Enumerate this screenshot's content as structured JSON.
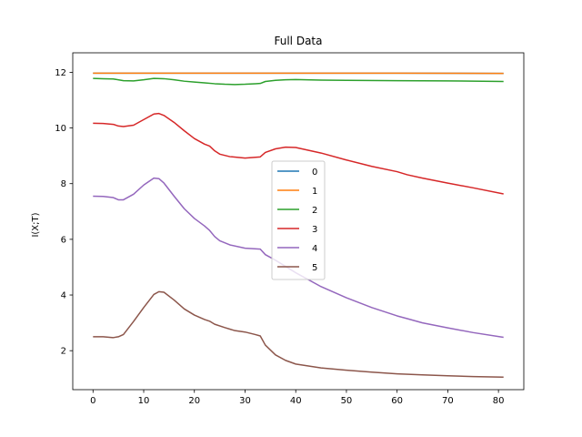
{
  "chart_data": {
    "type": "line",
    "title": "Full Data",
    "xlabel": "",
    "ylabel": "I(X;T)",
    "xlim": [
      -4,
      85
    ],
    "ylim": [
      0.6,
      12.7
    ],
    "xticks": [
      0,
      10,
      20,
      30,
      40,
      50,
      60,
      70,
      80
    ],
    "yticks": [
      2,
      4,
      6,
      8,
      10,
      12
    ],
    "grid": false,
    "legend_position": "center",
    "series": [
      {
        "name": "0",
        "color": "#1f77b4",
        "points": [
          [
            0,
            11.97
          ],
          [
            20,
            11.97
          ],
          [
            40,
            11.97
          ],
          [
            60,
            11.97
          ],
          [
            81,
            11.96
          ]
        ]
      },
      {
        "name": "1",
        "color": "#ff7f0e",
        "points": [
          [
            0,
            11.97
          ],
          [
            20,
            11.97
          ],
          [
            40,
            11.97
          ],
          [
            60,
            11.97
          ],
          [
            81,
            11.96
          ]
        ]
      },
      {
        "name": "2",
        "color": "#2ca02c",
        "points": [
          [
            0,
            11.78
          ],
          [
            2,
            11.77
          ],
          [
            4,
            11.76
          ],
          [
            6,
            11.7
          ],
          [
            8,
            11.69
          ],
          [
            10,
            11.73
          ],
          [
            12,
            11.78
          ],
          [
            14,
            11.77
          ],
          [
            16,
            11.73
          ],
          [
            18,
            11.68
          ],
          [
            20,
            11.65
          ],
          [
            22,
            11.62
          ],
          [
            24,
            11.59
          ],
          [
            26,
            11.57
          ],
          [
            28,
            11.56
          ],
          [
            30,
            11.57
          ],
          [
            32,
            11.59
          ],
          [
            33,
            11.6
          ],
          [
            34,
            11.67
          ],
          [
            36,
            11.71
          ],
          [
            38,
            11.73
          ],
          [
            40,
            11.74
          ],
          [
            45,
            11.72
          ],
          [
            50,
            11.71
          ],
          [
            60,
            11.7
          ],
          [
            70,
            11.69
          ],
          [
            81,
            11.67
          ]
        ]
      },
      {
        "name": "3",
        "color": "#d62728",
        "points": [
          [
            0,
            10.17
          ],
          [
            2,
            10.16
          ],
          [
            4,
            10.13
          ],
          [
            5,
            10.07
          ],
          [
            6,
            10.05
          ],
          [
            8,
            10.1
          ],
          [
            10,
            10.3
          ],
          [
            12,
            10.5
          ],
          [
            13,
            10.52
          ],
          [
            14,
            10.45
          ],
          [
            16,
            10.2
          ],
          [
            18,
            9.9
          ],
          [
            20,
            9.62
          ],
          [
            22,
            9.42
          ],
          [
            23,
            9.35
          ],
          [
            24,
            9.18
          ],
          [
            25,
            9.06
          ],
          [
            27,
            8.97
          ],
          [
            30,
            8.92
          ],
          [
            33,
            8.96
          ],
          [
            34,
            9.12
          ],
          [
            36,
            9.25
          ],
          [
            38,
            9.31
          ],
          [
            40,
            9.3
          ],
          [
            45,
            9.1
          ],
          [
            50,
            8.85
          ],
          [
            55,
            8.62
          ],
          [
            60,
            8.43
          ],
          [
            62,
            8.32
          ],
          [
            65,
            8.2
          ],
          [
            70,
            8.02
          ],
          [
            75,
            7.85
          ],
          [
            81,
            7.63
          ]
        ]
      },
      {
        "name": "4",
        "color": "#9467bd",
        "points": [
          [
            0,
            7.55
          ],
          [
            2,
            7.54
          ],
          [
            4,
            7.5
          ],
          [
            5,
            7.42
          ],
          [
            6,
            7.42
          ],
          [
            8,
            7.62
          ],
          [
            10,
            7.95
          ],
          [
            12,
            8.2
          ],
          [
            13,
            8.18
          ],
          [
            14,
            8.02
          ],
          [
            16,
            7.55
          ],
          [
            18,
            7.1
          ],
          [
            20,
            6.75
          ],
          [
            22,
            6.48
          ],
          [
            23,
            6.32
          ],
          [
            24,
            6.1
          ],
          [
            25,
            5.95
          ],
          [
            27,
            5.8
          ],
          [
            30,
            5.68
          ],
          [
            33,
            5.65
          ],
          [
            34,
            5.45
          ],
          [
            36,
            5.25
          ],
          [
            40,
            4.8
          ],
          [
            45,
            4.3
          ],
          [
            50,
            3.9
          ],
          [
            55,
            3.55
          ],
          [
            60,
            3.25
          ],
          [
            62,
            3.15
          ],
          [
            65,
            3.0
          ],
          [
            70,
            2.82
          ],
          [
            75,
            2.65
          ],
          [
            81,
            2.48
          ]
        ]
      },
      {
        "name": "5",
        "color": "#8c564b",
        "points": [
          [
            0,
            2.5
          ],
          [
            2,
            2.5
          ],
          [
            4,
            2.47
          ],
          [
            5,
            2.5
          ],
          [
            6,
            2.58
          ],
          [
            8,
            3.05
          ],
          [
            10,
            3.55
          ],
          [
            12,
            4.02
          ],
          [
            13,
            4.12
          ],
          [
            14,
            4.1
          ],
          [
            16,
            3.82
          ],
          [
            18,
            3.5
          ],
          [
            20,
            3.28
          ],
          [
            22,
            3.12
          ],
          [
            23,
            3.06
          ],
          [
            24,
            2.95
          ],
          [
            26,
            2.83
          ],
          [
            28,
            2.72
          ],
          [
            30,
            2.67
          ],
          [
            32,
            2.58
          ],
          [
            33,
            2.53
          ],
          [
            34,
            2.2
          ],
          [
            36,
            1.85
          ],
          [
            38,
            1.65
          ],
          [
            40,
            1.52
          ],
          [
            45,
            1.38
          ],
          [
            50,
            1.3
          ],
          [
            55,
            1.23
          ],
          [
            60,
            1.17
          ],
          [
            65,
            1.13
          ],
          [
            70,
            1.1
          ],
          [
            75,
            1.07
          ],
          [
            81,
            1.05
          ]
        ]
      }
    ]
  }
}
